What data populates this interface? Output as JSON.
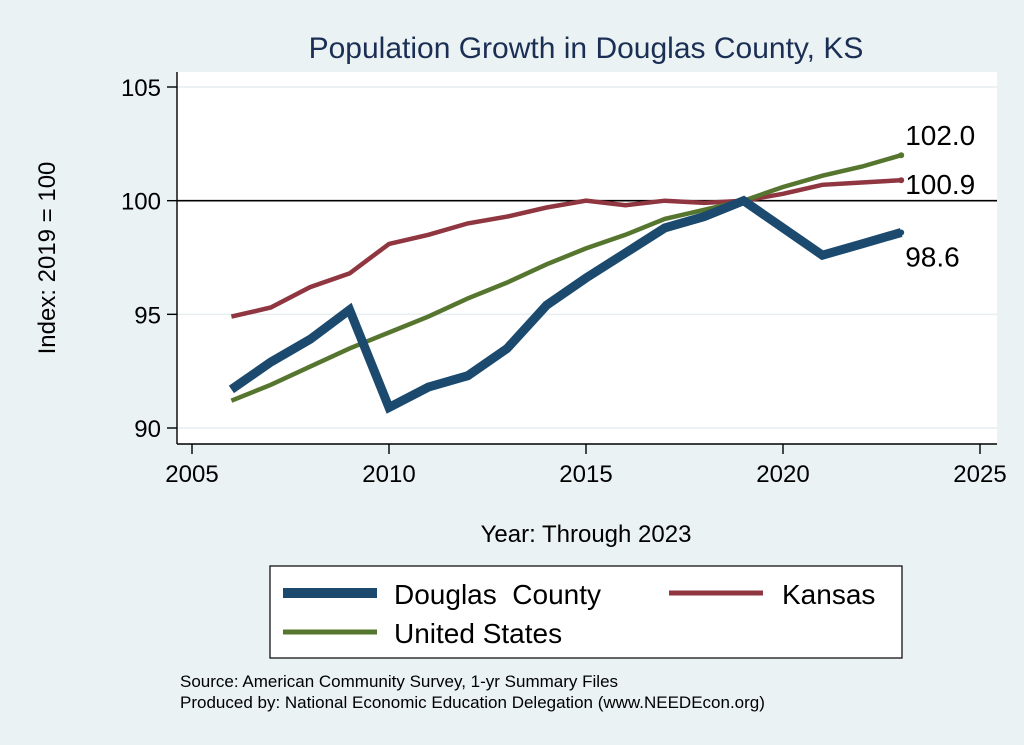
{
  "chart_data": {
    "type": "line",
    "title": "Population Growth in Douglas County, KS",
    "xlabel": "Year: Through 2023",
    "ylabel": "Index: 2019 = 100",
    "xlim": [
      2005,
      2025
    ],
    "ylim": [
      90,
      105
    ],
    "xticks": [
      2005,
      2010,
      2015,
      2020,
      2025
    ],
    "yticks": [
      90,
      95,
      100,
      105
    ],
    "reference_line": 100,
    "grid": true,
    "legend_position": "bottom",
    "colors": {
      "background": "#eaf2f3",
      "plot_background": "#ffffff",
      "title": "#1b2f55",
      "douglas": "#1b4a6e",
      "kansas": "#8f3640",
      "us": "#56762f"
    },
    "series": [
      {
        "name": "Douglas  County",
        "key": "douglas",
        "x": [
          2006,
          2007,
          2008,
          2009,
          2010,
          2011,
          2012,
          2013,
          2014,
          2015,
          2016,
          2017,
          2018,
          2019,
          2021,
          2022,
          2023
        ],
        "values": [
          91.7,
          92.9,
          93.9,
          95.2,
          90.9,
          91.8,
          92.3,
          93.5,
          95.4,
          96.6,
          97.7,
          98.8,
          99.3,
          100.0,
          97.6,
          98.1,
          98.6
        ],
        "end_label": "98.6"
      },
      {
        "name": "Kansas",
        "key": "kansas",
        "x": [
          2006,
          2007,
          2008,
          2009,
          2010,
          2011,
          2012,
          2013,
          2014,
          2015,
          2016,
          2017,
          2018,
          2019,
          2020,
          2021,
          2022,
          2023
        ],
        "values": [
          94.9,
          95.3,
          96.2,
          96.8,
          98.1,
          98.5,
          99.0,
          99.3,
          99.7,
          100.0,
          99.8,
          100.0,
          99.9,
          100.0,
          100.3,
          100.7,
          100.8,
          100.9
        ],
        "end_label": "100.9"
      },
      {
        "name": "United States",
        "key": "us",
        "x": [
          2006,
          2007,
          2008,
          2009,
          2010,
          2011,
          2012,
          2013,
          2014,
          2015,
          2016,
          2017,
          2018,
          2019,
          2020,
          2021,
          2022,
          2023
        ],
        "values": [
          91.2,
          91.9,
          92.7,
          93.5,
          94.2,
          94.9,
          95.7,
          96.4,
          97.2,
          97.9,
          98.5,
          99.2,
          99.6,
          100.0,
          100.6,
          101.1,
          101.5,
          102.0
        ],
        "end_label": "102.0"
      }
    ],
    "source_lines": [
      "Source: American Community Survey, 1-yr Summary Files",
      "Produced by: National Economic Education Delegation (www.NEEDEcon.org)"
    ]
  }
}
